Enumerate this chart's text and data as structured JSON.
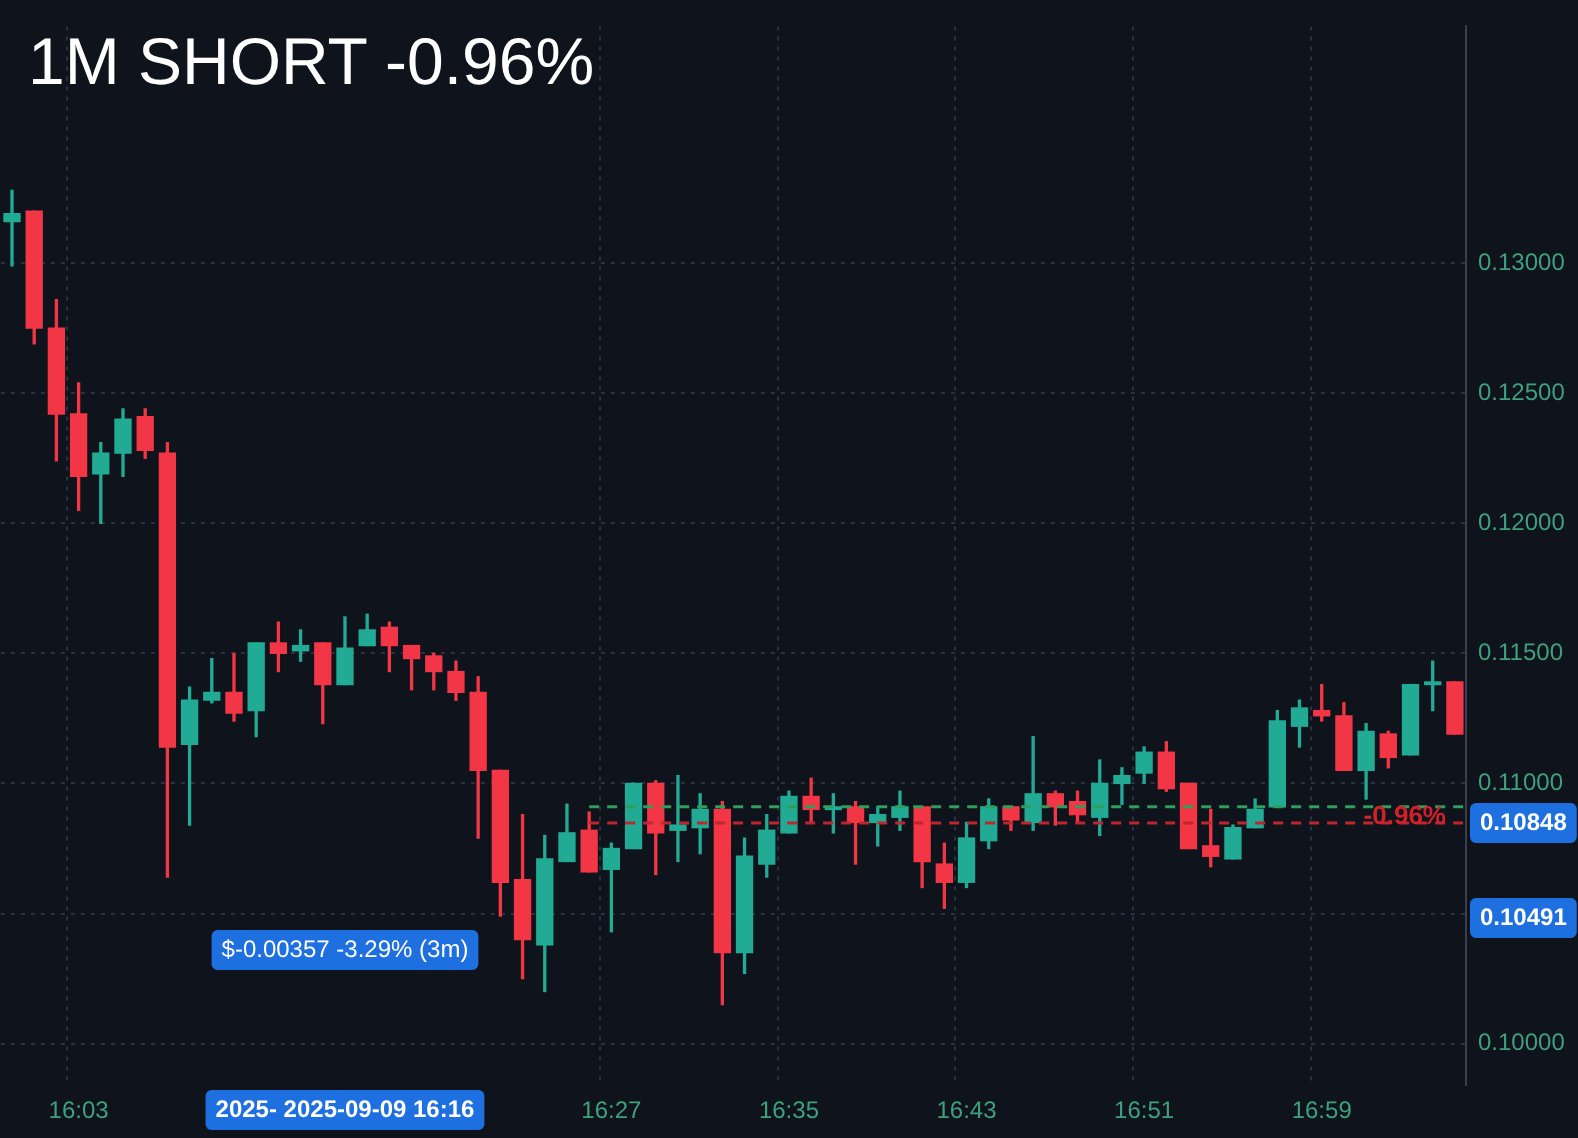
{
  "chart_data": {
    "type": "candlestick",
    "title": "1M SHORT -0.96%",
    "categories": [
      null,
      null,
      null,
      "16:03",
      null,
      null,
      null,
      null,
      null,
      null,
      null,
      null,
      null,
      null,
      null,
      null,
      null,
      null,
      null,
      null,
      null,
      null,
      null,
      null,
      null,
      null,
      null,
      "16:27",
      null,
      null,
      null,
      null,
      null,
      null,
      null,
      "16:35",
      null,
      null,
      null,
      null,
      null,
      null,
      null,
      "16:43",
      null,
      null,
      null,
      null,
      null,
      null,
      null,
      "16:51",
      null,
      null,
      null,
      null,
      null,
      null,
      null,
      "16:59",
      null,
      null,
      null,
      null,
      null,
      null
    ],
    "ohlc": [
      [
        0.1316,
        0.1328,
        0.1299,
        0.1319
      ],
      [
        0.132,
        0.132,
        0.1269,
        0.1275
      ],
      [
        0.1275,
        0.1286,
        0.1224,
        0.1242
      ],
      [
        0.1242,
        0.1254,
        0.1205,
        0.1218
      ],
      [
        0.1219,
        0.1231,
        0.12,
        0.1227
      ],
      [
        0.1227,
        0.1244,
        0.1218,
        0.124
      ],
      [
        0.1241,
        0.1244,
        0.1225,
        0.1228
      ],
      [
        0.1227,
        0.1231,
        0.1064,
        0.1114
      ],
      [
        0.1115,
        0.1137,
        0.1084,
        0.1132
      ],
      [
        0.1132,
        0.1148,
        0.1131,
        0.1135
      ],
      [
        0.1135,
        0.115,
        0.1124,
        0.1127
      ],
      [
        0.1128,
        0.1154,
        0.1118,
        0.1154
      ],
      [
        0.1154,
        0.1162,
        0.1143,
        0.115
      ],
      [
        0.1151,
        0.1159,
        0.1147,
        0.1153
      ],
      [
        0.1154,
        0.1154,
        0.1123,
        0.1138
      ],
      [
        0.1138,
        0.1164,
        0.1138,
        0.1152
      ],
      [
        0.1153,
        0.1165,
        0.1153,
        0.1159
      ],
      [
        0.116,
        0.1162,
        0.1143,
        0.1153
      ],
      [
        0.1153,
        0.1153,
        0.1136,
        0.1148
      ],
      [
        0.1149,
        0.115,
        0.1136,
        0.1143
      ],
      [
        0.1143,
        0.1147,
        0.1132,
        0.1135
      ],
      [
        0.1135,
        0.1141,
        0.1079,
        0.1105
      ],
      [
        0.1105,
        0.1105,
        0.1049,
        0.1062
      ],
      [
        0.1063,
        0.1088,
        0.1025,
        0.104
      ],
      [
        0.1038,
        0.108,
        0.102,
        0.1071
      ],
      [
        0.107,
        0.1092,
        0.107,
        0.1081
      ],
      [
        0.1082,
        0.1089,
        0.1066,
        0.1066
      ],
      [
        0.1067,
        0.1077,
        0.1043,
        0.1075
      ],
      [
        0.1075,
        0.11,
        0.1075,
        0.11
      ],
      [
        0.11,
        0.1101,
        0.1065,
        0.1081
      ],
      [
        0.1082,
        0.1103,
        0.107,
        0.1084
      ],
      [
        0.1083,
        0.1096,
        0.1073,
        0.109
      ],
      [
        0.109,
        0.1093,
        0.1015,
        0.1035
      ],
      [
        0.1035,
        0.1079,
        0.1027,
        0.1072
      ],
      [
        0.1069,
        0.1088,
        0.1064,
        0.1082
      ],
      [
        0.1081,
        0.1097,
        0.1081,
        0.1095
      ],
      [
        0.1095,
        0.1102,
        0.1085,
        0.109
      ],
      [
        0.109,
        0.1096,
        0.1081,
        0.1091
      ],
      [
        0.1091,
        0.1093,
        0.1069,
        0.1085
      ],
      [
        0.1085,
        0.1091,
        0.1076,
        0.1088
      ],
      [
        0.1087,
        0.1097,
        0.1082,
        0.1091
      ],
      [
        0.1091,
        0.1091,
        0.106,
        0.107
      ],
      [
        0.1069,
        0.1077,
        0.1052,
        0.1062
      ],
      [
        0.1062,
        0.1085,
        0.106,
        0.1079
      ],
      [
        0.1078,
        0.1094,
        0.1075,
        0.1091
      ],
      [
        0.1091,
        0.1091,
        0.1082,
        0.1086
      ],
      [
        0.1085,
        0.1118,
        0.1082,
        0.1096
      ],
      [
        0.1096,
        0.1097,
        0.1084,
        0.1091
      ],
      [
        0.1093,
        0.1097,
        0.1085,
        0.1088
      ],
      [
        0.1087,
        0.1109,
        0.108,
        0.11
      ],
      [
        0.11,
        0.1106,
        0.1092,
        0.1103
      ],
      [
        0.1104,
        0.1114,
        0.11,
        0.1112
      ],
      [
        0.1112,
        0.1116,
        0.1097,
        0.1098
      ],
      [
        0.11,
        0.11,
        0.1075,
        0.1075
      ],
      [
        0.1076,
        0.109,
        0.1068,
        0.1072
      ],
      [
        0.1071,
        0.1084,
        0.1071,
        0.1083
      ],
      [
        0.1083,
        0.1094,
        0.1083,
        0.109
      ],
      [
        0.1091,
        0.1128,
        0.1091,
        0.1124
      ],
      [
        0.1122,
        0.1132,
        0.1114,
        0.1129
      ],
      [
        0.1128,
        0.1138,
        0.1124,
        0.1126
      ],
      [
        0.1126,
        0.1131,
        0.1105,
        0.1105
      ],
      [
        0.1105,
        0.1123,
        0.1094,
        0.112
      ],
      [
        0.1119,
        0.112,
        0.1106,
        0.111
      ],
      [
        0.1111,
        0.1138,
        0.1111,
        0.1138
      ],
      [
        0.1138,
        0.1147,
        0.1128,
        0.1139
      ],
      [
        0.1139,
        0.1139,
        0.1119,
        0.1119
      ]
    ],
    "colors": [
      "#22ab94",
      "#f23645",
      "#f23645",
      "#f23645",
      "#22ab94",
      "#22ab94",
      "#f23645",
      "#f23645",
      "#22ab94",
      "#22ab94",
      "#f23645",
      "#22ab94",
      "#f23645",
      "#22ab94",
      "#f23645",
      "#22ab94",
      "#22ab94",
      "#f23645",
      "#f23645",
      "#f23645",
      "#f23645",
      "#f23645",
      "#f23645",
      "#f23645",
      "#22ab94",
      "#22ab94",
      "#f23645",
      "#22ab94",
      "#22ab94",
      "#f23645",
      "#22ab94",
      "#22ab94",
      "#f23645",
      "#22ab94",
      "#22ab94",
      "#22ab94",
      "#f23645",
      "#22ab94",
      "#f23645",
      "#22ab94",
      "#22ab94",
      "#f23645",
      "#f23645",
      "#22ab94",
      "#22ab94",
      "#f23645",
      "#22ab94",
      "#f23645",
      "#f23645",
      "#22ab94",
      "#22ab94",
      "#22ab94",
      "#f23645",
      "#f23645",
      "#f23645",
      "#22ab94",
      "#22ab94",
      "#22ab94",
      "#22ab94",
      "#f23645",
      "#f23645",
      "#22ab94",
      "#f23645",
      "#22ab94",
      "#22ab94",
      "#f23645"
    ],
    "ylim": [
      0.0984,
      0.1391
    ],
    "yticks": [
      {
        "value": 0.1,
        "label": "0.10000"
      },
      {
        "value": 0.105,
        "label": null
      },
      {
        "value": 0.11,
        "label": "0.11000"
      },
      {
        "value": 0.115,
        "label": "0.11500"
      },
      {
        "value": 0.12,
        "label": "0.12000"
      },
      {
        "value": 0.125,
        "label": "0.12500"
      },
      {
        "value": 0.13,
        "label": "0.13000"
      }
    ],
    "grid": true,
    "ref_lines": [
      {
        "axis": "y",
        "value": 0.1091,
        "color": "#2f9e5a",
        "line_style": "dashed"
      },
      {
        "axis": "y",
        "value": 0.10848,
        "label": "0.10848",
        "color": "#c0262f",
        "line_style": "dashed"
      }
    ],
    "annotations": [
      {
        "text": "-0.96%",
        "y": 0.1087
      },
      "0.10491",
      "$-0.00357 -3.29% (3m)",
      "2025- 2025-09-09 16:16"
    ]
  }
}
